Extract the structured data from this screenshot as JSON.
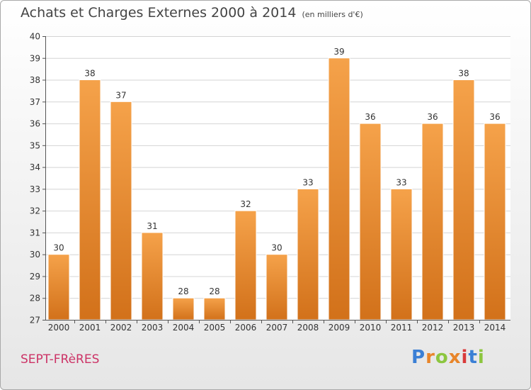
{
  "header": {
    "title": "Achats et Charges Externes 2000 à 2014",
    "unit": "(en milliers d'€)"
  },
  "footer": {
    "place": "SEPT-FRèRES",
    "logo_letters": [
      "P",
      "r",
      "o",
      "x",
      "i",
      "t",
      "i"
    ],
    "logo_colors": [
      "#3a7fd5",
      "#e8852a",
      "#8cc63f",
      "#e8852a",
      "#d93a3a",
      "#3a7fd5",
      "#8cc63f"
    ]
  },
  "colors": {
    "bar_top": "#f5a24a",
    "bar_bottom": "#d2711a",
    "bar_stroke": "#ffffff",
    "grid": "#d4d4d4",
    "axis": "#555555",
    "text": "#333333"
  },
  "chart_data": {
    "type": "bar",
    "title": "Achats et Charges Externes 2000 à 2014",
    "subtitle": "(en milliers d'€)",
    "xlabel": "",
    "ylabel": "",
    "categories": [
      "2000",
      "2001",
      "2002",
      "2003",
      "2004",
      "2005",
      "2006",
      "2007",
      "2008",
      "2009",
      "2010",
      "2011",
      "2012",
      "2013",
      "2014"
    ],
    "values": [
      30,
      38,
      37,
      31,
      28,
      28,
      32,
      30,
      33,
      39,
      36,
      33,
      36,
      38,
      36
    ],
    "ylim": [
      27,
      40
    ],
    "yticks": [
      27,
      28,
      29,
      30,
      31,
      32,
      33,
      34,
      35,
      36,
      37,
      38,
      39,
      40
    ],
    "grid": true,
    "legend": "none"
  }
}
